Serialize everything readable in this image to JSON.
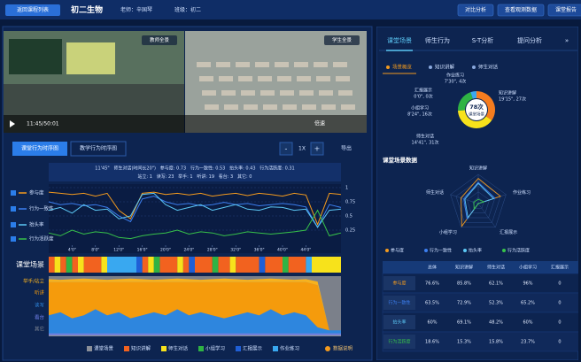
{
  "header": {
    "back": "返回课程列表",
    "course": "初二生物",
    "teacher": "老师：辛国琴",
    "class_name": "班级：初二",
    "buttons": [
      "对比分析",
      "查看观测数据",
      "课堂报告"
    ]
  },
  "video": {
    "teacher_view": "教师全景",
    "student_view": "学生全景",
    "time": "11:45/50:01",
    "speed": "倍速"
  },
  "timeline_panel": {
    "tabs": [
      "课堂行为时序图",
      "教学行为时序图"
    ],
    "zoom_out": "-",
    "zoom": "1X",
    "zoom_in": "+",
    "export": "导出",
    "info_line1": "11'45\"   师生对话(时间长20\")   参与度: 0.73   行为一致性: 0.53   抬头率: 0.43   行为活跃度: 0.31",
    "info_line2": "站立: 1   读写: 23   举手: 1   听讲: 19   看台: 3   其它: 0",
    "scene_label": "课堂场景",
    "data_note": "数据说明"
  },
  "scene_bar": {
    "xlim": [
      0,
      50
    ],
    "scenes": [
      {
        "name": "知识讲解",
        "color": "#f2621f",
        "spans": [
          [
            0,
            1
          ],
          [
            2,
            3
          ],
          [
            4,
            5
          ],
          [
            6,
            9
          ],
          [
            16,
            17
          ],
          [
            19,
            22
          ],
          [
            23,
            24
          ],
          [
            25,
            28
          ],
          [
            29,
            31
          ],
          [
            32,
            36
          ],
          [
            37,
            40
          ],
          [
            41,
            44
          ]
        ]
      },
      {
        "name": "师生对话",
        "color": "#f7e21b",
        "spans": [
          [
            1,
            2
          ],
          [
            5,
            6
          ],
          [
            9,
            10
          ],
          [
            17,
            18
          ],
          [
            22,
            23
          ],
          [
            31,
            32
          ],
          [
            45,
            50
          ]
        ]
      },
      {
        "name": "小组学习",
        "color": "#2fb344",
        "spans": [
          [
            3,
            4
          ],
          [
            18,
            19
          ],
          [
            28,
            29
          ],
          [
            40,
            41
          ]
        ]
      },
      {
        "name": "汇报展示",
        "color": "#1f5fd6",
        "spans": [
          [
            15,
            16
          ],
          [
            24,
            25
          ],
          [
            36,
            37
          ]
        ]
      },
      {
        "name": "作业练习",
        "color": "#39a8f0",
        "spans": [
          [
            10,
            15
          ],
          [
            44,
            45
          ]
        ]
      }
    ]
  },
  "right_panel": {
    "tabs": [
      "课堂场景",
      "师生行为",
      "S-T分析",
      "提问分析",
      "»"
    ],
    "subtabs": [
      "场景概览",
      "知识讲解",
      "师生对话"
    ],
    "section_title": "课堂场景数据"
  },
  "table": {
    "header": [
      "总体",
      "知识讲解",
      "师生对话",
      "小组学习",
      "汇报展示"
    ],
    "rows": [
      {
        "label": "参与度",
        "color": "#f39a1e",
        "cells": [
          "76.6%",
          "85.8%",
          "62.1%",
          "96%",
          "0"
        ]
      },
      {
        "label": "行为一致性",
        "color": "#3c7ff0",
        "cells": [
          "63.5%",
          "72.9%",
          "52.3%",
          "65.2%",
          "0"
        ]
      },
      {
        "label": "抬头率",
        "color": "#5cc8f5",
        "cells": [
          "60%",
          "69.1%",
          "48.2%",
          "60%",
          "0"
        ]
      },
      {
        "label": "行为活跃度",
        "color": "#37c24a",
        "cells": [
          "18.6%",
          "15.3%",
          "15.8%",
          "23.7%",
          "0"
        ]
      }
    ]
  },
  "chart_data": [
    {
      "type": "line",
      "x": [
        0,
        2,
        4,
        6,
        8,
        10,
        12,
        14,
        16,
        18,
        20,
        22,
        24,
        26,
        28,
        30,
        32,
        34,
        36,
        38,
        40,
        42,
        44,
        46,
        48,
        50
      ],
      "xlim": [
        0,
        50
      ],
      "ylim": [
        0,
        1
      ],
      "xticks": [
        {
          "value": 4,
          "label": "4'0\""
        },
        {
          "value": 8,
          "label": "8'0\""
        },
        {
          "value": 12,
          "label": "12'0\""
        },
        {
          "value": 16,
          "label": "16'0\""
        },
        {
          "value": 20,
          "label": "20'0\""
        },
        {
          "value": 24,
          "label": "24'0\""
        },
        {
          "value": 28,
          "label": "28'0\""
        },
        {
          "value": 32,
          "label": "32'0\""
        },
        {
          "value": 36,
          "label": "36'0\""
        },
        {
          "value": 40,
          "label": "40'0\""
        },
        {
          "value": 44,
          "label": "44'0\""
        }
      ],
      "yticks": [
        0.25,
        0.5,
        0.75,
        1
      ],
      "grid": true,
      "series": [
        {
          "name": "参与度",
          "color": "#f39a1e",
          "values": [
            0.92,
            0.9,
            0.88,
            0.9,
            0.85,
            0.9,
            0.6,
            0.45,
            0.9,
            0.92,
            0.88,
            0.9,
            0.87,
            0.9,
            0.85,
            0.88,
            0.9,
            0.86,
            0.9,
            0.88,
            0.85,
            0.9,
            0.87,
            0.35,
            0.9,
            0.88
          ]
        },
        {
          "name": "行为一致性",
          "color": "#3c7ff0",
          "values": [
            0.75,
            0.7,
            0.72,
            0.68,
            0.7,
            0.65,
            0.5,
            0.4,
            0.8,
            0.85,
            0.75,
            0.7,
            0.72,
            0.68,
            0.7,
            0.74,
            0.7,
            0.72,
            0.68,
            0.7,
            0.72,
            0.7,
            0.66,
            0.3,
            0.7,
            0.65
          ]
        },
        {
          "name": "抬头率",
          "color": "#5cc8f5",
          "values": [
            0.6,
            0.65,
            0.55,
            0.7,
            0.6,
            0.62,
            0.45,
            0.5,
            0.88,
            0.9,
            0.7,
            0.6,
            0.65,
            0.7,
            0.6,
            0.65,
            0.7,
            0.62,
            0.6,
            0.66,
            0.65,
            0.6,
            0.62,
            0.3,
            0.6,
            0.62
          ]
        },
        {
          "name": "行为活跃度",
          "color": "#37c24a",
          "values": [
            0.2,
            0.15,
            0.25,
            0.18,
            0.22,
            0.2,
            0.12,
            0.1,
            0.15,
            0.18,
            0.2,
            0.25,
            0.18,
            0.22,
            0.2,
            0.15,
            0.18,
            0.22,
            0.2,
            0.18,
            0.2,
            0.22,
            0.25,
            0.6,
            0.15,
            0.2
          ]
        }
      ]
    },
    {
      "type": "stacked-area",
      "x": [
        0,
        2,
        4,
        6,
        8,
        10,
        12,
        14,
        16,
        18,
        20,
        22,
        24,
        26,
        28,
        30,
        32,
        34,
        36,
        38,
        40,
        42,
        44,
        46,
        48,
        50
      ],
      "xlim": [
        0,
        50
      ],
      "ylim": [
        0,
        1
      ],
      "series": [
        {
          "name": "举手/站立",
          "color": "#f7b21e",
          "values": [
            0.05,
            0.04,
            0.05,
            0.06,
            0.05,
            0.04,
            0.05,
            0.06,
            0.05,
            0.04,
            0.05,
            0.06,
            0.05,
            0.04,
            0.05,
            0.06,
            0.05,
            0.04,
            0.05,
            0.06,
            0.05,
            0.04,
            0.05,
            0.06,
            0,
            0
          ]
        },
        {
          "name": "听讲",
          "color": "#f59b0c",
          "values": [
            0.55,
            0.5,
            0.6,
            0.55,
            0.45,
            0.55,
            0.5,
            0.6,
            0.55,
            0.5,
            0.55,
            0.45,
            0.55,
            0.5,
            0.55,
            0.6,
            0.55,
            0.5,
            0.55,
            0.45,
            0.55,
            0.5,
            0.55,
            0.7,
            0,
            0
          ]
        },
        {
          "name": "读写",
          "color": "#2e86de",
          "values": [
            0.3,
            0.35,
            0.25,
            0.3,
            0.4,
            0.3,
            0.35,
            0.25,
            0.3,
            0.35,
            0.3,
            0.4,
            0.3,
            0.35,
            0.3,
            0.25,
            0.3,
            0.35,
            0.3,
            0.4,
            0.3,
            0.35,
            0.3,
            0.1,
            0.05,
            0.05
          ]
        },
        {
          "name": "看台",
          "color": "#6f7fe8",
          "values": [
            0.03,
            0.03,
            0.03,
            0.03,
            0.03,
            0.03,
            0.03,
            0.03,
            0.03,
            0.03,
            0.03,
            0.03,
            0.03,
            0.03,
            0.03,
            0.03,
            0.03,
            0.03,
            0.03,
            0.03,
            0.03,
            0.03,
            0.03,
            0.03,
            0.03,
            0.03
          ]
        },
        {
          "name": "其它",
          "color": "#8a8f99",
          "values": [
            0.02,
            0.02,
            0.02,
            0.02,
            0.02,
            0.02,
            0.02,
            0.02,
            0.02,
            0.02,
            0.02,
            0.02,
            0.02,
            0.02,
            0.02,
            0.02,
            0.02,
            0.02,
            0.02,
            0.02,
            0.02,
            0.02,
            0.02,
            0.02,
            0.02,
            0.02
          ]
        }
      ]
    },
    {
      "type": "pie",
      "center_value": "78次",
      "center_label": "课堂场景",
      "categories": [
        "知识讲解",
        "师生对话",
        "小组学习",
        "汇报展示",
        "作业练习"
      ],
      "values": [
        27,
        31,
        16,
        0,
        4
      ],
      "value_labels": [
        "19'15\", 27次",
        "14'41\", 31次",
        "8'24\", 16次",
        "0'0\", 0次",
        "7'30\", 4次"
      ],
      "colors": [
        "#f57c1f",
        "#f7e21b",
        "#2fb344",
        "#1f5fd6",
        "#39a8f0"
      ]
    },
    {
      "type": "radar",
      "categories": [
        "知识讲解",
        "作业练习",
        "汇报展示",
        "小组学习",
        "师生对话"
      ],
      "ylim": [
        0,
        1
      ],
      "series": [
        {
          "name": "参与度",
          "color": "#f39a1e",
          "values": [
            0.86,
            0.8,
            0,
            0.96,
            0.62
          ]
        },
        {
          "name": "行为一致性",
          "color": "#3c7ff0",
          "values": [
            0.73,
            0.6,
            0,
            0.65,
            0.52
          ]
        },
        {
          "name": "抬头率",
          "color": "#5cc8f5",
          "values": [
            0.69,
            0.55,
            0,
            0.6,
            0.48
          ]
        },
        {
          "name": "行为活跃度",
          "color": "#37c24a",
          "values": [
            0.15,
            0.2,
            0,
            0.24,
            0.16
          ]
        }
      ]
    }
  ]
}
